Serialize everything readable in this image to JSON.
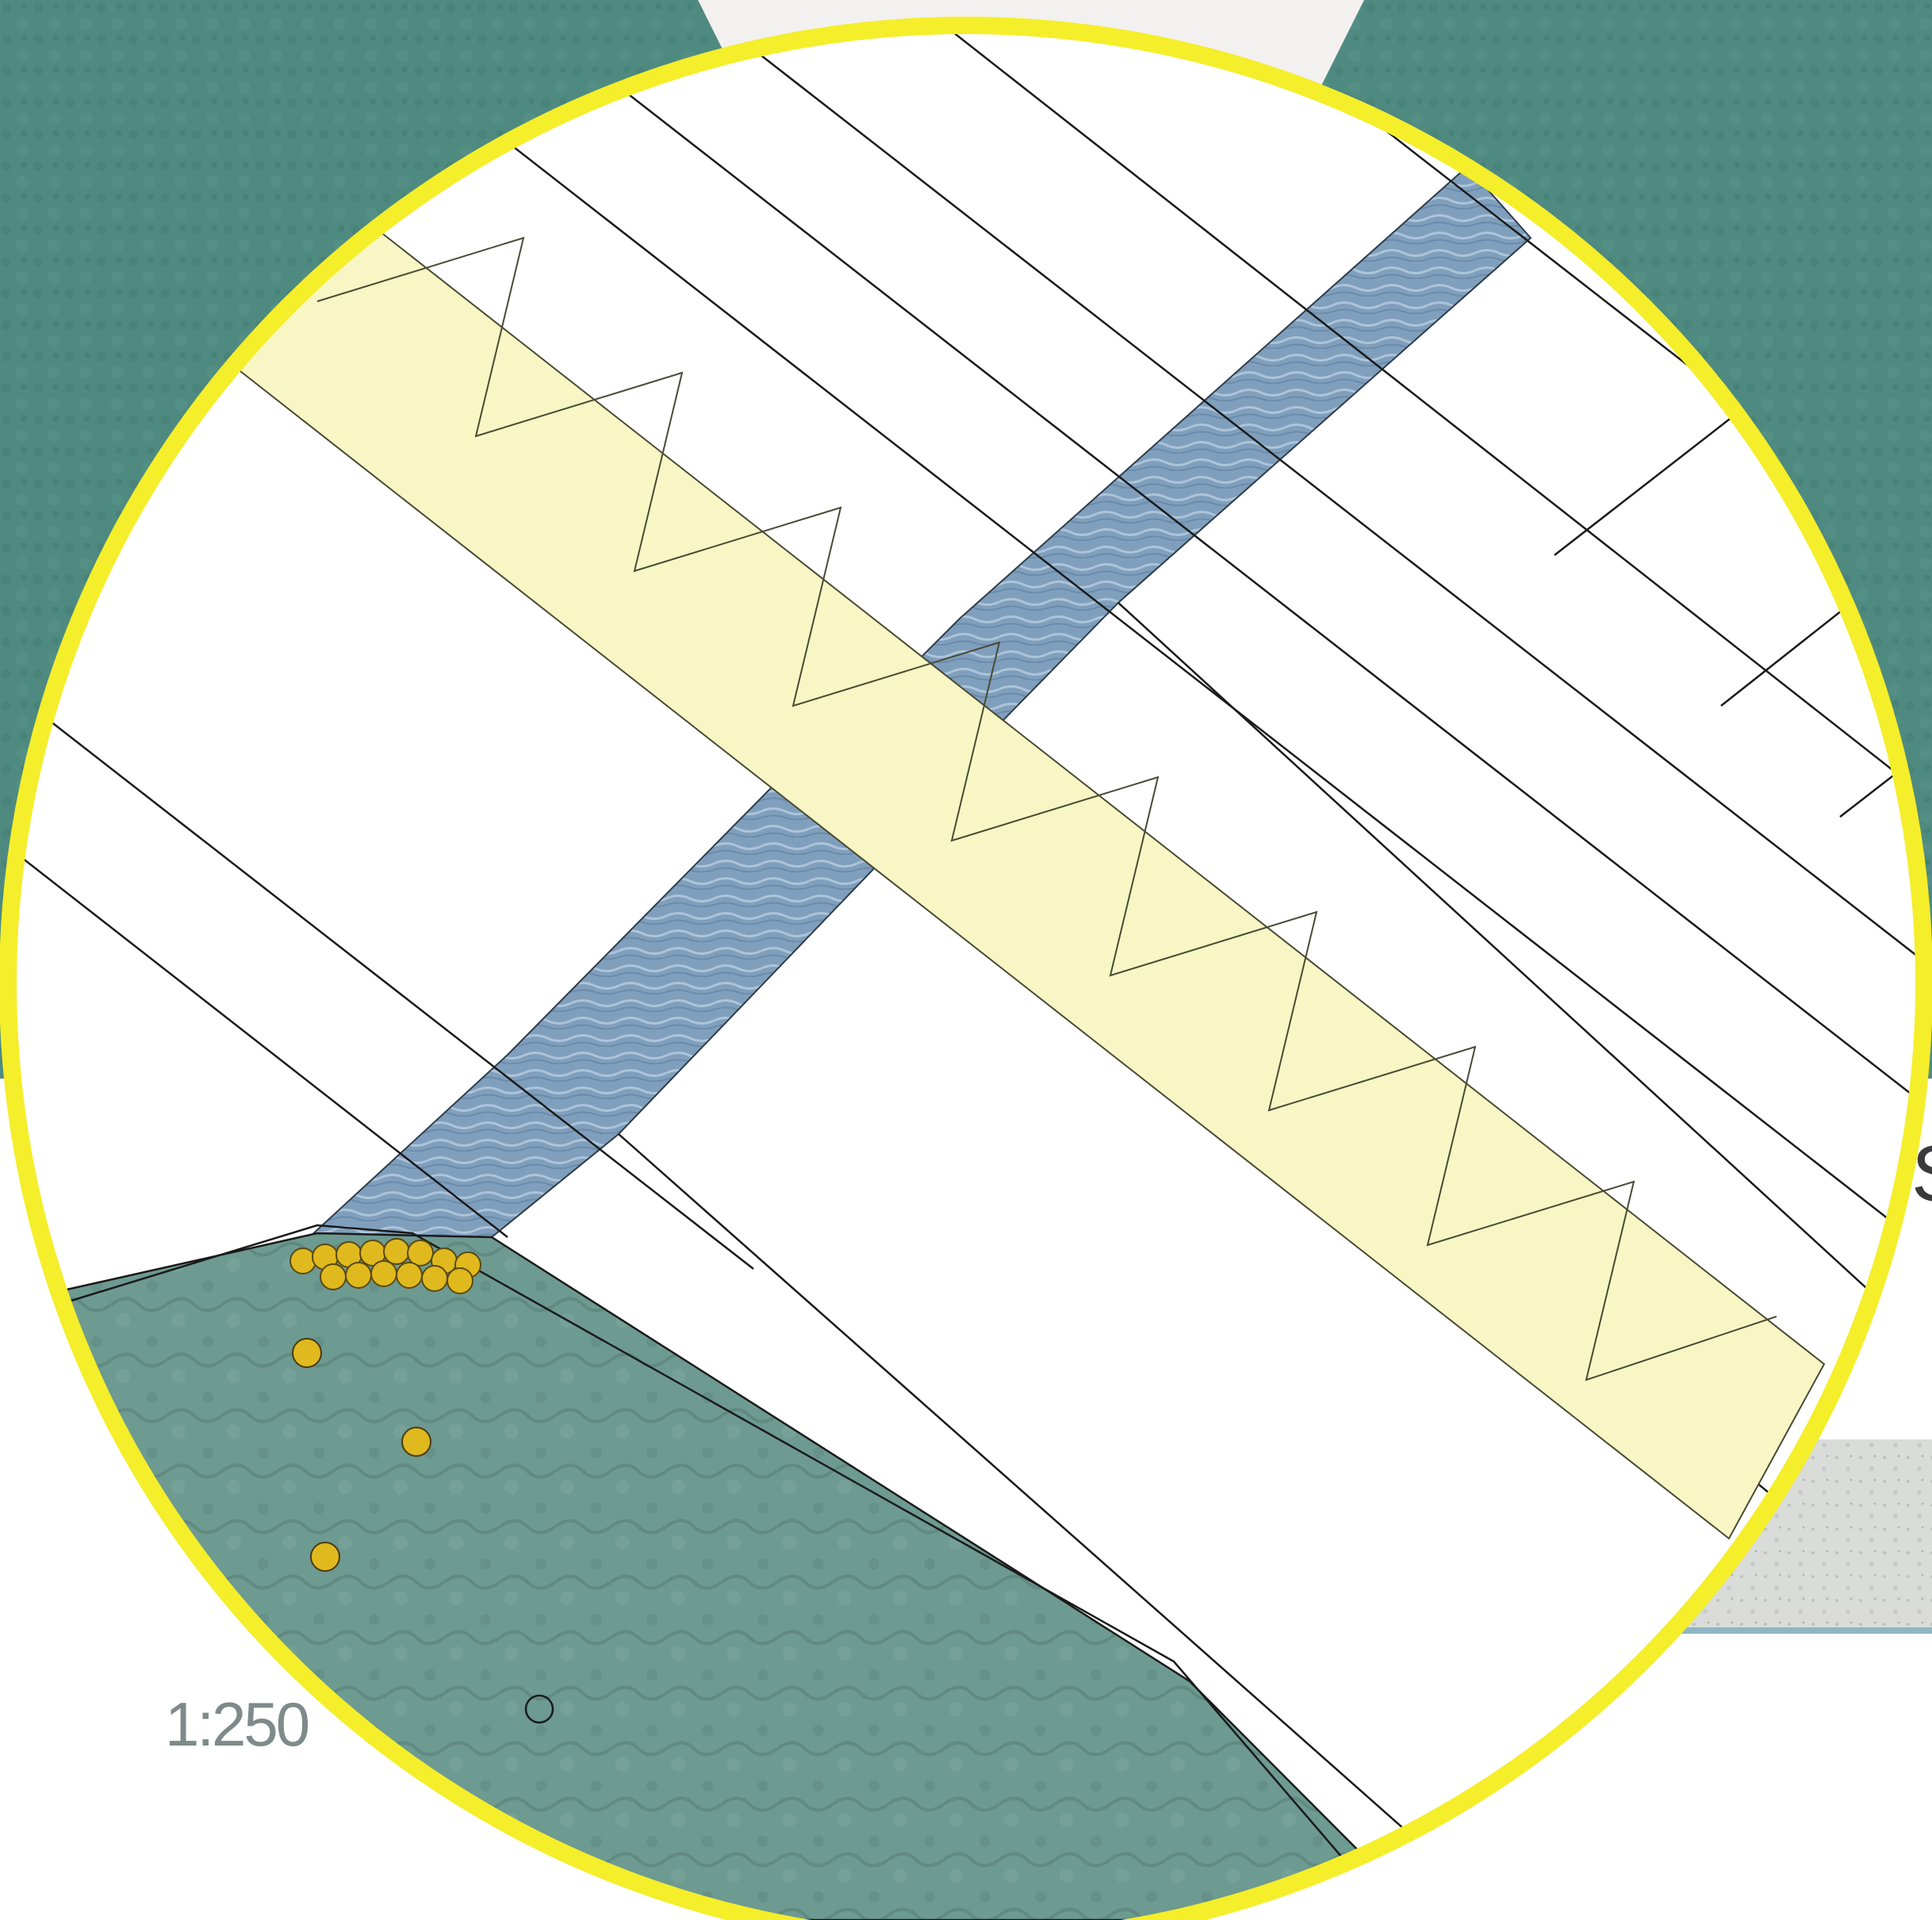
{
  "drawing": {
    "scale_label": "1:250",
    "edge_glyph": "S"
  },
  "colors": {
    "background_teal": "#4f8a80",
    "background_teal_dark": "#3f7a72",
    "paper_white": "#ffffff",
    "frame_yellow": "#f5ee2a",
    "deck_yellow": "#f8f6c4",
    "water_blue": "#7f9fbd",
    "water_blue_dark": "#5f7f9f",
    "marker_yellow": "#e0b91e",
    "ground_teal": "#6d9a91",
    "concrete_grey": "#d9dcd9",
    "line_black": "#1a1a1a"
  },
  "markers": {
    "filled_count": 3,
    "hollow_count": 1,
    "cluster_count": 14
  },
  "layers": [
    "background-texture",
    "paper-plan",
    "water-channel",
    "yellow-deck",
    "ground-wedge",
    "circular-frame"
  ]
}
